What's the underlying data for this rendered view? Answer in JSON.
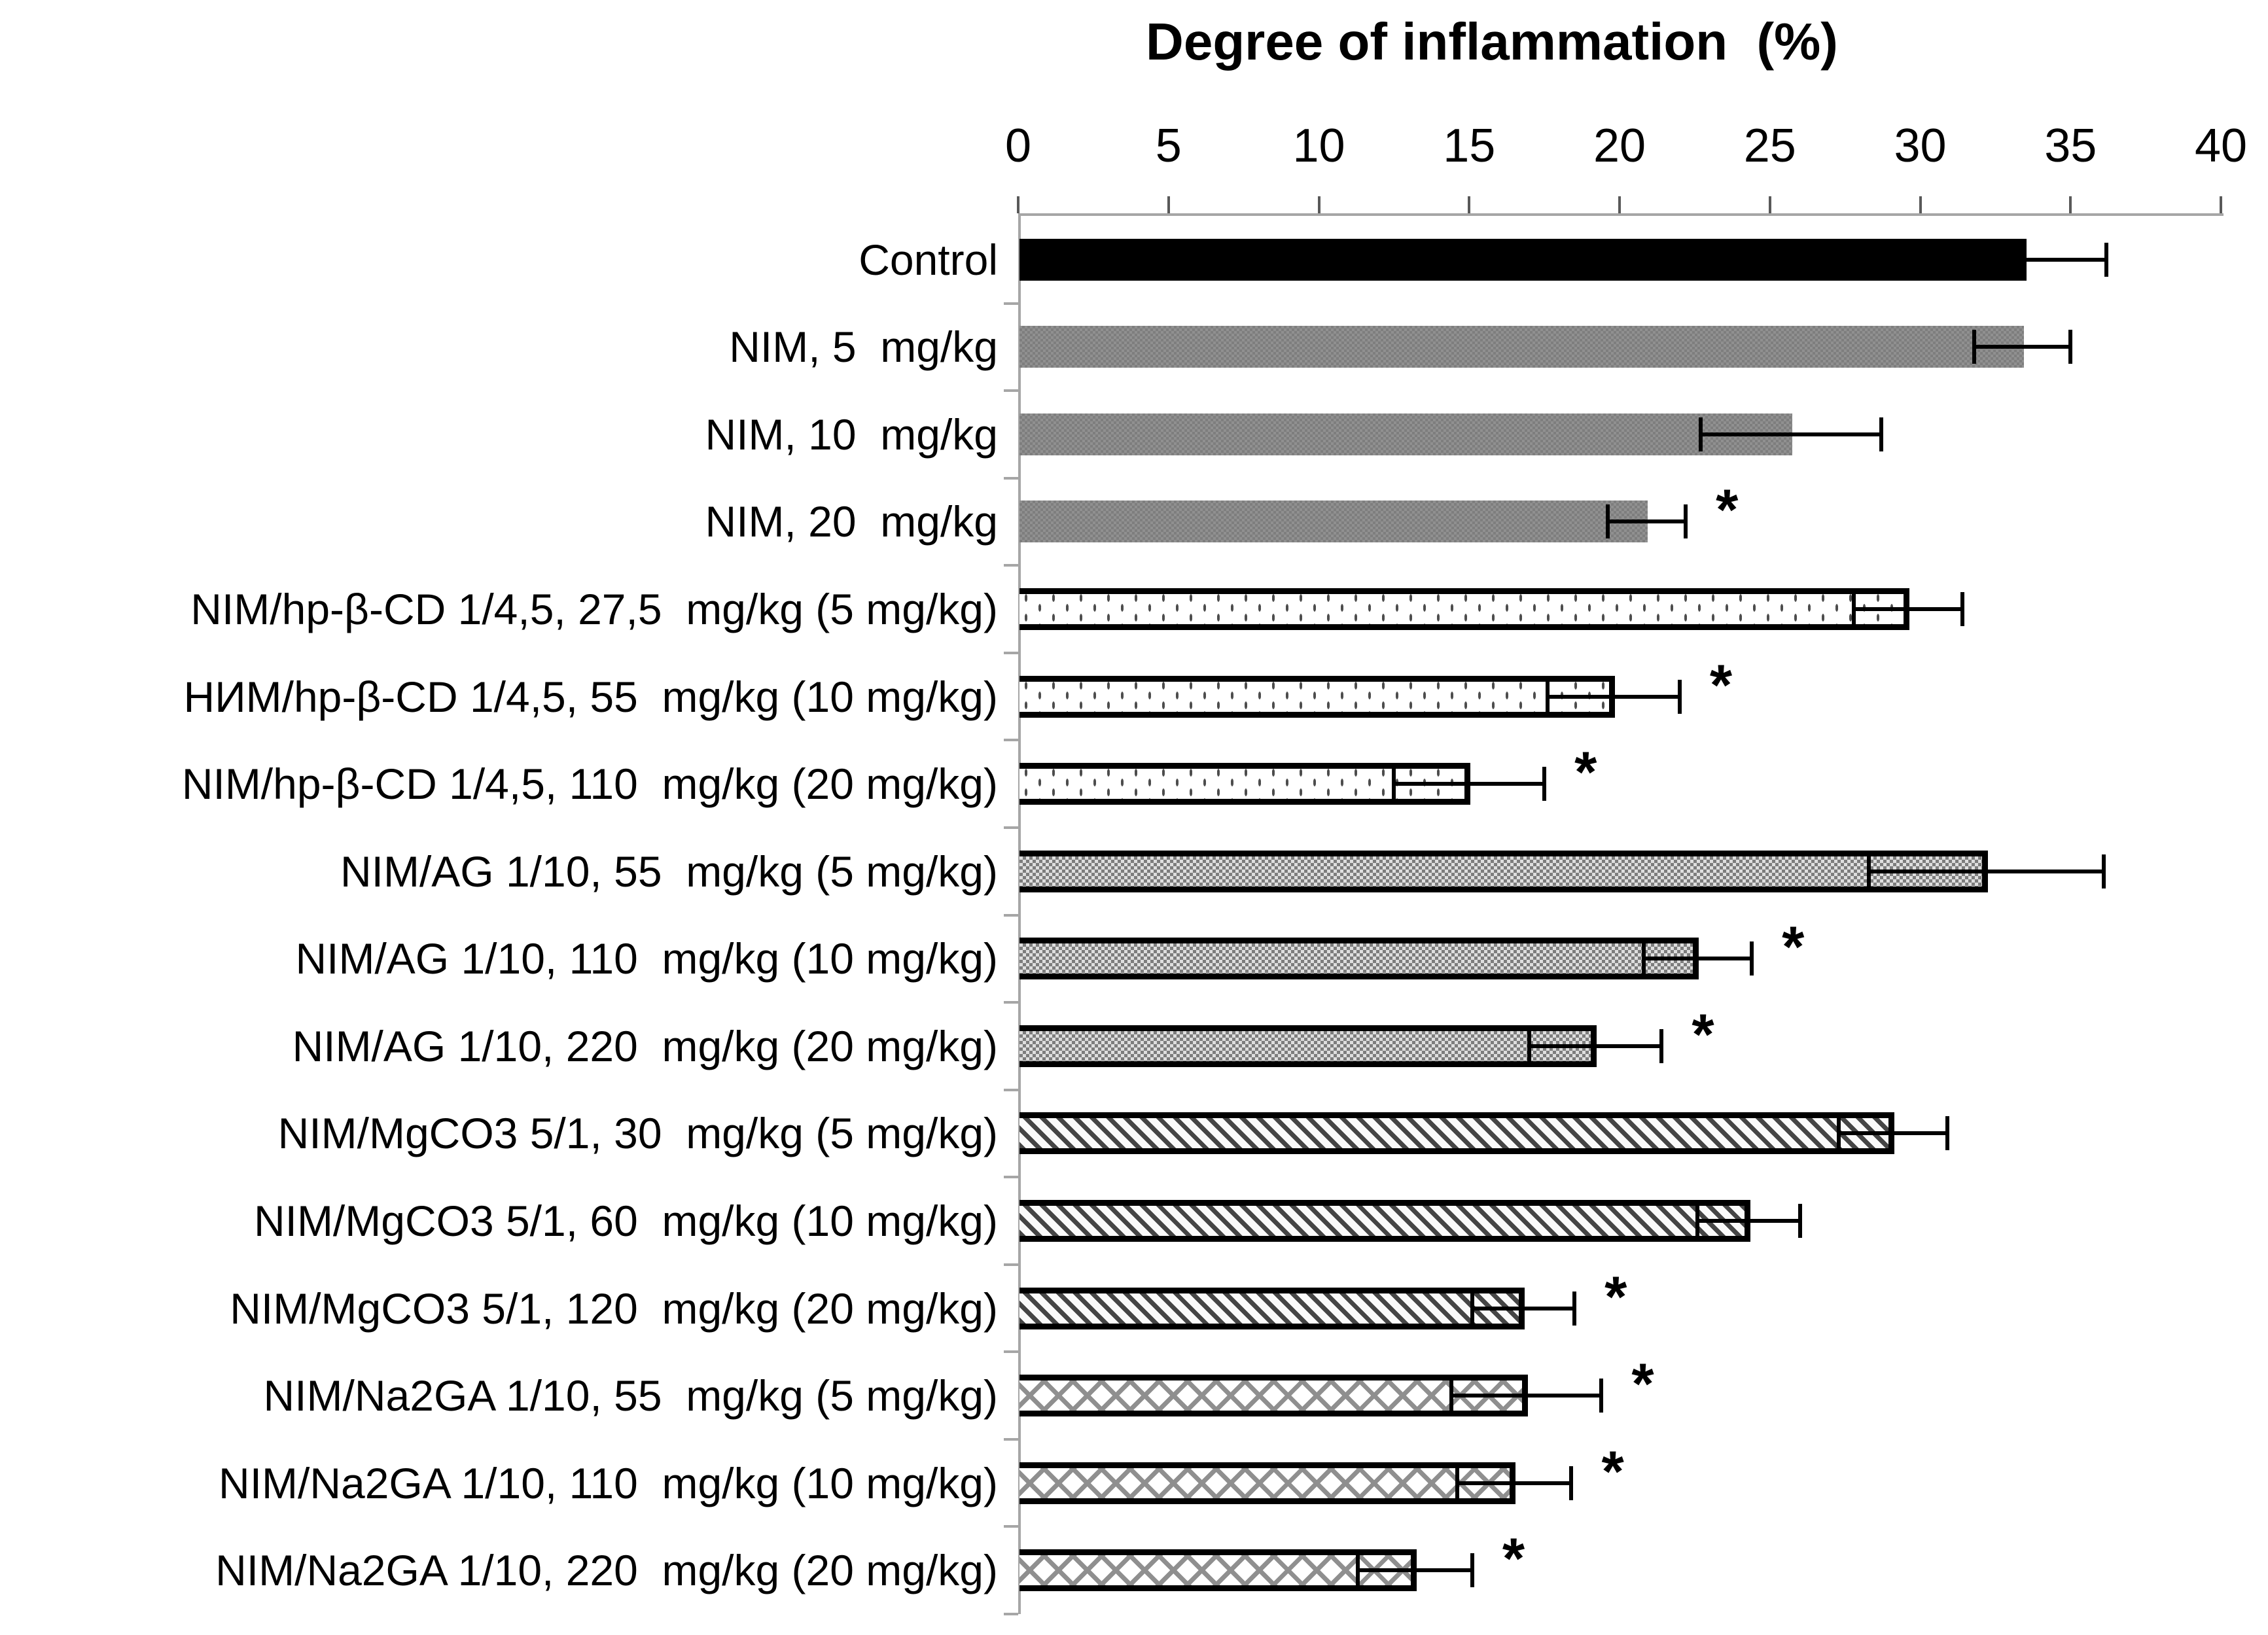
{
  "title": "Degree of inflammation  (%)",
  "significance_marker": "*",
  "colors": {
    "axis_line": "#a6a6a6",
    "tick_mark": "#595959",
    "bar_black": "#000000",
    "bar_gray": "#909090",
    "pattern_ink": "#4d4d4d",
    "error_bar": "#000000",
    "text": "#000000",
    "background": "#ffffff"
  },
  "chart_data": {
    "type": "bar",
    "orientation": "horizontal",
    "title": "Degree of inflammation  (%)",
    "xlabel": "",
    "ylabel": "",
    "grid": "off",
    "legend": "none",
    "x_axis": {
      "min": 0,
      "max": 40,
      "tick_step": 5,
      "tick_values": [
        0,
        5,
        10,
        15,
        20,
        25,
        30,
        35,
        40
      ],
      "tick_labels": [
        "0",
        "5",
        "10",
        "15",
        "20",
        "25",
        "30",
        "35",
        "40"
      ],
      "position": "top"
    },
    "categories": [
      "Control",
      "NIM, 5  mg/kg",
      "NIM, 10  mg/kg",
      "NIM, 20  mg/kg",
      "NIM/hp-β-CD 1/4,5, 27,5  mg/kg (5 mg/kg)",
      "НИМ/hp-β-CD 1/4,5, 55  mg/kg (10 mg/kg)",
      "NIM/hp-β-CD 1/4,5, 110  mg/kg (20 mg/kg)",
      "NIM/AG 1/10, 55  mg/kg (5 mg/kg)",
      "NIM/AG 1/10, 110  mg/kg (10 mg/kg)",
      "NIM/AG 1/10, 220  mg/kg (20 mg/kg)",
      "NIM/MgCO3 5/1, 30  mg/kg (5 mg/kg)",
      "NIM/MgCO3 5/1, 60  mg/kg (10 mg/kg)",
      "NIM/MgCO3 5/1, 120  mg/kg (20 mg/kg)",
      "NIM/Na2GA 1/10, 55  mg/kg (5 mg/kg)",
      "NIM/Na2GA 1/10, 110  mg/kg (10 mg/kg)",
      "NIM/Na2GA 1/10, 220  mg/kg (20 mg/kg)"
    ],
    "values": [
      33.5,
      33.4,
      25.7,
      20.9,
      29.6,
      19.8,
      15.0,
      32.2,
      22.6,
      19.2,
      29.1,
      24.3,
      16.8,
      16.9,
      16.5,
      13.2
    ],
    "errors": [
      2.7,
      1.6,
      3.0,
      1.3,
      1.8,
      2.2,
      2.5,
      3.9,
      1.8,
      2.2,
      1.8,
      1.7,
      1.7,
      2.5,
      1.9,
      1.9
    ],
    "significant": [
      false,
      false,
      false,
      true,
      false,
      true,
      true,
      false,
      true,
      true,
      false,
      false,
      true,
      true,
      true,
      true
    ],
    "patterns": [
      "solid-black",
      "gray-stripe",
      "gray-stripe",
      "gray-stripe",
      "dotted",
      "dotted",
      "dotted",
      "fine-grid",
      "fine-grid",
      "fine-grid",
      "diag-hatch",
      "diag-hatch",
      "diag-hatch",
      "diamond-lattice",
      "diamond-lattice",
      "diamond-lattice"
    ]
  }
}
